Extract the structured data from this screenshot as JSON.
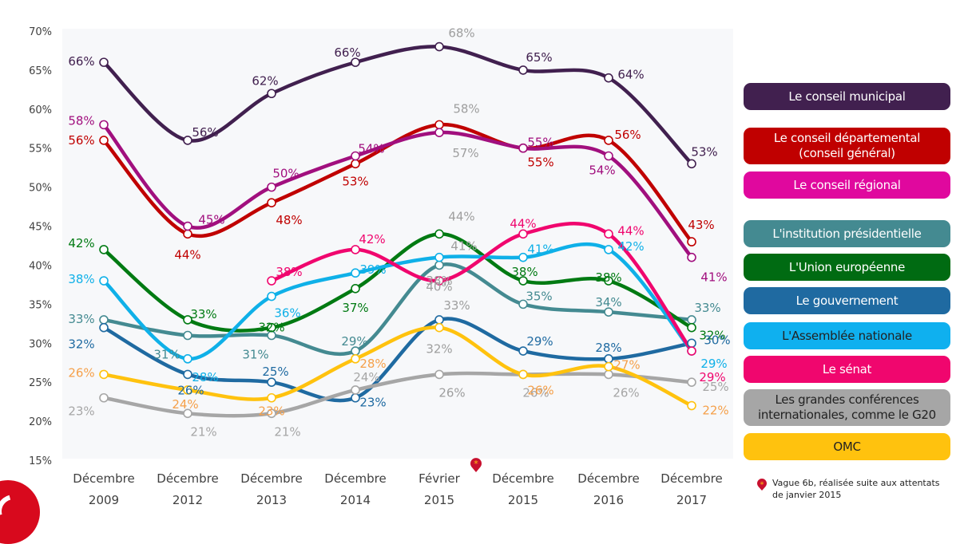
{
  "chart_data": {
    "type": "line",
    "title": "",
    "xlabel": "",
    "ylabel": "",
    "ylim": [
      15,
      70
    ],
    "yticks": [
      "15%",
      "20%",
      "25%",
      "30%",
      "35%",
      "40%",
      "45%",
      "50%",
      "55%",
      "60%",
      "65%",
      "70%"
    ],
    "grid": false,
    "legend_position": "right",
    "categories": [
      {
        "line1": "Décembre",
        "line2": "2009"
      },
      {
        "line1": "Décembre",
        "line2": "2012"
      },
      {
        "line1": "Décembre",
        "line2": "2013"
      },
      {
        "line1": "Décembre",
        "line2": "2014"
      },
      {
        "line1": "Février",
        "line2": "2015",
        "marker": true
      },
      {
        "line1": "Décembre",
        "line2": "2015"
      },
      {
        "line1": "Décembre",
        "line2": "2016"
      },
      {
        "line1": "Décembre",
        "line2": "2017"
      }
    ],
    "series": [
      {
        "name": "Le conseil municipal",
        "color": "#41204f",
        "values": [
          66,
          56,
          62,
          66,
          68,
          65,
          64,
          53
        ],
        "label_color": "#41204f",
        "feb_label_color": "#9e9e9e"
      },
      {
        "name": "Le conseil départemental\n(conseil général)",
        "color": "#c00000",
        "values": [
          56,
          44,
          48,
          53,
          58,
          55,
          56,
          43
        ],
        "label_color": "#c00000",
        "feb_label_color": "#9e9e9e"
      },
      {
        "name": "Le conseil régional",
        "color": "#a10f7e",
        "values": [
          58,
          45,
          50,
          54,
          57,
          55,
          54,
          41
        ],
        "label_color": "#a10f7e",
        "feb_label_color": "#9e9e9e"
      },
      {
        "name": "L'institution présidentielle",
        "color": "#448a91",
        "values": [
          33,
          31,
          31,
          29,
          40,
          35,
          34,
          33
        ],
        "label_color": "#448a91",
        "feb_label_color": "#9e9e9e"
      },
      {
        "name": "L'Union européenne",
        "color": "#007a12",
        "values": [
          42,
          33,
          32,
          37,
          44,
          38,
          38,
          32
        ],
        "label_color": "#007a12",
        "feb_label_color": "#9e9e9e"
      },
      {
        "name": "Le gouvernement",
        "color": "#1f6aa1",
        "values": [
          32,
          26,
          25,
          23,
          33,
          29,
          28,
          30
        ],
        "label_color": "#1f6aa1",
        "feb_label_color": "#9e9e9e"
      },
      {
        "name": "L'Assemblée nationale",
        "color": "#0fb0e8",
        "values": [
          38,
          28,
          36,
          39,
          41,
          41,
          42,
          29
        ],
        "label_color": "#0fb0e8",
        "feb_label_color": "#9e9e9e"
      },
      {
        "name": "Le sénat",
        "color": "#f0066e",
        "values": [
          null,
          null,
          38,
          42,
          38,
          44,
          44,
          29
        ],
        "label_color": "#f0066e",
        "feb_label_color": "#9e9e9e"
      },
      {
        "name": "Les grandes conférences\ninternationales, comme le G20",
        "color": "#a6a6a6",
        "values": [
          23,
          21,
          21,
          24,
          26,
          26,
          26,
          25
        ],
        "label_color": "#a6a6a6",
        "feb_label_color": "#9e9e9e"
      },
      {
        "name": "OMC",
        "color": "#ffc20e",
        "values": [
          26,
          24,
          23,
          28,
          32,
          26,
          27,
          22
        ],
        "label_color": "#f5a04a",
        "feb_label_color": "#9e9e9e"
      }
    ],
    "annotations": [
      "Feb 2015 wave marked with an asterisk pin"
    ]
  },
  "legend": [
    {
      "label": "Le conseil municipal",
      "color": "#41204f",
      "dark_text": false
    },
    {
      "label": "Le conseil départemental\n(conseil général)",
      "color": "#c00000",
      "dark_text": false
    },
    {
      "label": "Le conseil régional",
      "color": "#e0089e",
      "dark_text": false
    },
    {
      "label": "L'institution présidentielle",
      "color": "#448a91",
      "dark_text": false
    },
    {
      "label": "L'Union européenne",
      "color": "#006b12",
      "dark_text": false
    },
    {
      "label": "Le gouvernement",
      "color": "#1f6aa1",
      "dark_text": false
    },
    {
      "label": "L'Assemblée nationale",
      "color": "#0fb0ef",
      "dark_text": true
    },
    {
      "label": "Le sénat",
      "color": "#f0066e",
      "dark_text": false
    },
    {
      "label": "Les grandes conférences\ninternationales, comme le G20",
      "color": "#a6a6a6",
      "dark_text": true
    },
    {
      "label": "OMC",
      "color": "#ffc20e",
      "dark_text": true
    }
  ],
  "footnote": {
    "text": "Vague 6b, réalisée suite aux attentats de janvier 2015",
    "pin_color": "#c8102e",
    "star_color": "#ffc20e"
  },
  "colors": {
    "plot_background": "#f7f8fa",
    "axis_text": "#404040"
  }
}
